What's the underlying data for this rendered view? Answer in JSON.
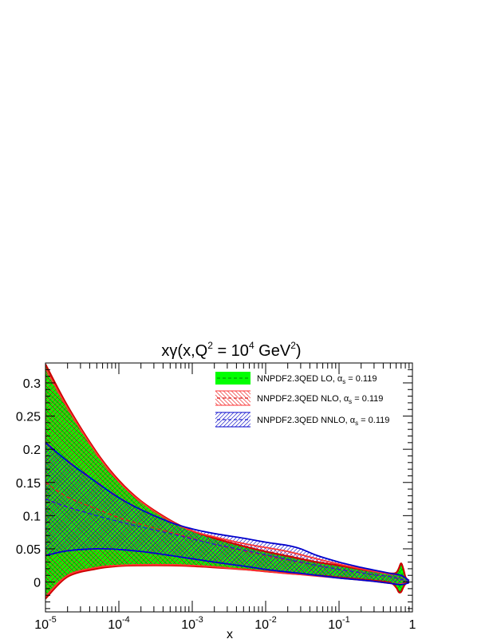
{
  "chart_data": {
    "type": "area",
    "title": {
      "main": "xγ(x,Q",
      "sup1": "2",
      "mid": " = 10",
      "sup2": "4",
      "after": " GeV",
      "sup3": "2",
      "close": ")"
    },
    "xlabel": "x",
    "ylabel": "",
    "x_scale": "log",
    "xlim": [
      1e-05,
      1.0
    ],
    "ylim": [
      -0.045,
      0.33
    ],
    "x_ticks": [
      {
        "value": 1e-05,
        "base": "10",
        "exp": "-5"
      },
      {
        "value": 0.0001,
        "base": "10",
        "exp": "-4"
      },
      {
        "value": 0.001,
        "base": "10",
        "exp": "-3"
      },
      {
        "value": 0.01,
        "base": "10",
        "exp": "-2"
      },
      {
        "value": 0.1,
        "base": "10",
        "exp": "-1"
      },
      {
        "value": 1.0,
        "base": "1",
        "exp": ""
      }
    ],
    "y_ticks": [
      {
        "value": 0,
        "label": "0"
      },
      {
        "value": 0.05,
        "label": "0.05"
      },
      {
        "value": 0.1,
        "label": "0.1"
      },
      {
        "value": 0.15,
        "label": "0.15"
      },
      {
        "value": 0.2,
        "label": "0.2"
      },
      {
        "value": 0.25,
        "label": "0.25"
      },
      {
        "value": 0.3,
        "label": "0.3"
      }
    ],
    "legend_position": "top-right",
    "series": [
      {
        "name": "NNPDF2.3QED LO",
        "alpha_label": "α",
        "alpha_sub": "s",
        "alpha_value": " = 0.119",
        "fill": "#00ff00",
        "edge": "#cc0000",
        "style": "solid",
        "x": [
          1e-05,
          2e-05,
          5e-05,
          0.0001,
          0.0002,
          0.0005,
          0.001,
          0.002,
          0.005,
          0.01,
          0.02,
          0.05,
          0.1,
          0.2,
          0.3,
          0.5,
          0.6,
          0.65,
          0.7,
          0.75,
          0.8,
          0.85,
          0.9
        ],
        "upper": [
          0.328,
          0.265,
          0.195,
          0.153,
          0.122,
          0.093,
          0.077,
          0.066,
          0.054,
          0.046,
          0.039,
          0.03,
          0.025,
          0.019,
          0.016,
          0.013,
          0.014,
          0.02,
          0.028,
          0.02,
          0.008,
          0.004,
          0.002
        ],
        "central": [
          0.15,
          0.128,
          0.11,
          0.097,
          0.087,
          0.075,
          0.066,
          0.057,
          0.047,
          0.04,
          0.033,
          0.025,
          0.019,
          0.014,
          0.011,
          0.008,
          0.006,
          0.005,
          0.004,
          0.003,
          0.002,
          0.001,
          0.0005
        ],
        "lower": [
          -0.025,
          0.008,
          0.02,
          0.024,
          0.025,
          0.025,
          0.024,
          0.022,
          0.019,
          0.016,
          0.013,
          0.01,
          0.007,
          0.004,
          0.002,
          -0.001,
          -0.008,
          -0.015,
          -0.015,
          -0.008,
          -0.003,
          -0.001,
          0.0
        ]
      },
      {
        "name": "NNPDF2.3QED NLO",
        "alpha_label": "α",
        "alpha_sub": "s",
        "alpha_value": " = 0.119",
        "fill": "hatch-red",
        "edge": "#ff3333",
        "style": "dashed",
        "x": [
          1e-05,
          2e-05,
          5e-05,
          0.0001,
          0.0002,
          0.0005,
          0.001,
          0.002,
          0.005,
          0.01,
          0.02,
          0.05,
          0.1,
          0.2,
          0.3,
          0.5,
          0.7,
          0.9
        ],
        "upper": [
          0.322,
          0.262,
          0.193,
          0.151,
          0.121,
          0.092,
          0.077,
          0.068,
          0.058,
          0.052,
          0.046,
          0.035,
          0.027,
          0.02,
          0.016,
          0.012,
          0.01,
          0.002
        ],
        "central": [
          0.15,
          0.128,
          0.11,
          0.097,
          0.087,
          0.075,
          0.066,
          0.057,
          0.047,
          0.04,
          0.033,
          0.025,
          0.019,
          0.014,
          0.011,
          0.008,
          0.004,
          0.0005
        ],
        "lower": [
          -0.022,
          0.01,
          0.022,
          0.025,
          0.026,
          0.026,
          0.025,
          0.023,
          0.019,
          0.016,
          0.013,
          0.009,
          0.006,
          0.003,
          0.001,
          -0.002,
          -0.003,
          0.0
        ]
      },
      {
        "name": "NNPDF2.3QED NNLO",
        "alpha_label": "α",
        "alpha_sub": "s",
        "alpha_value": " = 0.119",
        "fill": "hatch-blue",
        "edge": "#0000cc",
        "style": "dashed",
        "x": [
          1e-05,
          2e-05,
          5e-05,
          0.0001,
          0.0002,
          0.0005,
          0.001,
          0.002,
          0.005,
          0.01,
          0.02,
          0.03,
          0.05,
          0.1,
          0.2,
          0.3,
          0.5,
          0.7,
          0.9
        ],
        "upper": [
          0.21,
          0.182,
          0.15,
          0.127,
          0.109,
          0.09,
          0.08,
          0.073,
          0.066,
          0.06,
          0.055,
          0.05,
          0.04,
          0.03,
          0.022,
          0.018,
          0.013,
          0.01,
          0.002
        ],
        "central": [
          0.125,
          0.113,
          0.1,
          0.091,
          0.083,
          0.073,
          0.065,
          0.057,
          0.048,
          0.041,
          0.034,
          0.03,
          0.025,
          0.019,
          0.014,
          0.011,
          0.008,
          0.004,
          0.0005
        ],
        "lower": [
          0.04,
          0.047,
          0.05,
          0.049,
          0.046,
          0.04,
          0.035,
          0.03,
          0.024,
          0.019,
          0.015,
          0.013,
          0.01,
          0.006,
          0.003,
          0.001,
          -0.002,
          -0.004,
          -0.001
        ]
      }
    ]
  }
}
